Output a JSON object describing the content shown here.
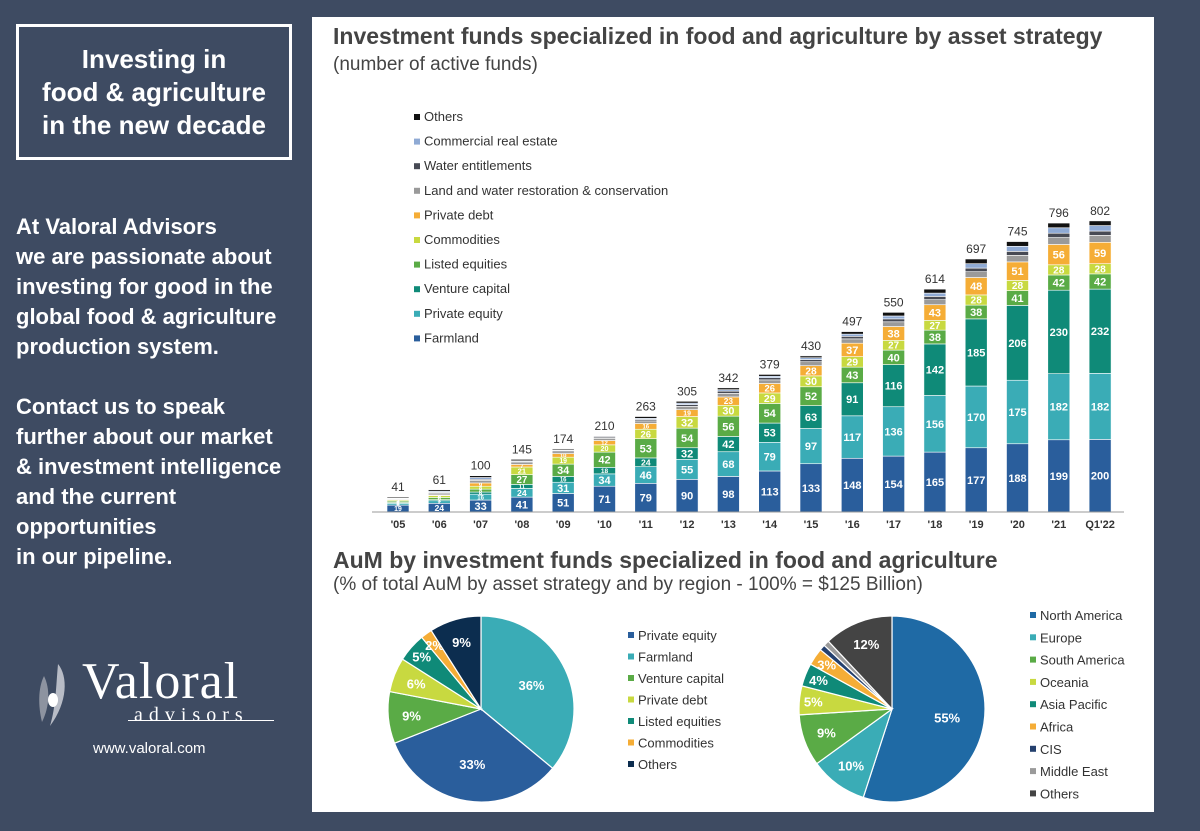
{
  "sidebar": {
    "title": "Investing in\nfood & agriculture\nin the new decade",
    "pitch": "At Valoral Advisors\nwe are passionate about\ninvesting for good in the\nglobal food & agriculture\nproduction system.\n\nContact us to speak\nfurther about our market\n& investment intelligence\nand  the current\nopportunities\nin our pipeline.",
    "logo_word": "Valoral",
    "logo_sub": "advisors",
    "website": "www.valoral.com"
  },
  "colors": {
    "Farmland": "#2a5e9c",
    "Private equity": "#3aacb6",
    "Venture capital": "#0f8a78",
    "Listed equities": "#5aab46",
    "Commodities": "#c8d940",
    "Private debt": "#f5ad36",
    "Land and water restoration & conservation": "#9a9a9a",
    "Water entitlements": "#474a54",
    "Commercial real estate": "#8faad4",
    "Others": "#111111",
    "North America": "#1f6aa5",
    "Europe": "#3aacb6",
    "South America": "#5aab46",
    "Oceania": "#c8d940",
    "Asia Pacific": "#0f8a78",
    "Africa": "#f5ad36",
    "CIS": "#24406e",
    "Middle East": "#9a9a9a",
    "OthersPie2": "#444444",
    "OthersPie1": "#0c2d4f"
  },
  "chart_data": [
    {
      "type": "bar",
      "stacked": true,
      "title": "Investment funds specialized in food and agriculture by asset strategy",
      "subtitle": "(number of active funds)",
      "categories": [
        "'05",
        "'06",
        "'07",
        "'08",
        "'09",
        "'10",
        "'11",
        "'12",
        "'13",
        "'14",
        "'15",
        "'16",
        "'17",
        "'18",
        "'19",
        "'20",
        "'21",
        "Q1'22"
      ],
      "totals": [
        41,
        61,
        100,
        145,
        174,
        210,
        263,
        305,
        342,
        379,
        430,
        497,
        550,
        614,
        697,
        745,
        796,
        802
      ],
      "legend_position": "top-left",
      "series": [
        {
          "name": "Farmland",
          "values": [
            19,
            24,
            33,
            41,
            51,
            71,
            79,
            90,
            98,
            113,
            133,
            148,
            154,
            165,
            177,
            188,
            199,
            200
          ]
        },
        {
          "name": "Private equity",
          "values": [
            5,
            7,
            16,
            24,
            31,
            34,
            46,
            55,
            68,
            79,
            97,
            117,
            136,
            156,
            170,
            175,
            182,
            182
          ]
        },
        {
          "name": "Venture capital",
          "values": [
            2,
            3,
            6,
            11,
            16,
            18,
            24,
            32,
            42,
            53,
            63,
            91,
            116,
            142,
            185,
            206,
            230,
            232
          ]
        },
        {
          "name": "Listed equities",
          "values": [
            4,
            6,
            8,
            27,
            34,
            42,
            53,
            54,
            56,
            54,
            52,
            43,
            40,
            38,
            38,
            41,
            42,
            42
          ]
        },
        {
          "name": "Commodities",
          "values": [
            3,
            5,
            8,
            21,
            19,
            20,
            26,
            32,
            30,
            29,
            30,
            29,
            27,
            27,
            28,
            28,
            28,
            28
          ]
        },
        {
          "name": "Private debt",
          "values": [
            1,
            2,
            9,
            7,
            10,
            12,
            16,
            19,
            23,
            26,
            28,
            37,
            38,
            43,
            48,
            51,
            56,
            59
          ]
        },
        {
          "name": "Land and water restoration & conservation",
          "values": [
            2,
            5,
            7,
            5,
            5,
            6,
            7,
            9,
            10,
            10,
            11,
            12,
            13,
            14,
            16,
            18,
            19,
            19
          ]
        },
        {
          "name": "Water entitlements",
          "values": [
            1,
            2,
            3,
            3,
            3,
            3,
            4,
            5,
            6,
            6,
            6,
            7,
            8,
            9,
            10,
            11,
            12,
            12
          ]
        },
        {
          "name": "Commercial real estate",
          "values": [
            1,
            3,
            5,
            2,
            2,
            2,
            3,
            4,
            4,
            4,
            5,
            6,
            8,
            9,
            12,
            14,
            15,
            15
          ]
        },
        {
          "name": "Others",
          "values": [
            3,
            4,
            5,
            4,
            3,
            2,
            5,
            5,
            5,
            5,
            5,
            7,
            10,
            11,
            13,
            13,
            13,
            13
          ]
        }
      ],
      "labels": [
        [
          19,
          24,
          33,
          41,
          51,
          71,
          79,
          90,
          98,
          113,
          133,
          148,
          154,
          165,
          177,
          188,
          199,
          200
        ],
        [
          5,
          7,
          16,
          24,
          31,
          34,
          46,
          55,
          68,
          79,
          97,
          117,
          136,
          156,
          170,
          175,
          182,
          182
        ],
        [
          2,
          3,
          6,
          11,
          16,
          18,
          24,
          32,
          42,
          53,
          63,
          91,
          116,
          142,
          185,
          206,
          230,
          232
        ],
        [
          4,
          6,
          8,
          27,
          34,
          42,
          53,
          54,
          56,
          54,
          52,
          43,
          40,
          38,
          38,
          41,
          42,
          42
        ],
        [
          3,
          5,
          8,
          21,
          19,
          20,
          26,
          32,
          30,
          29,
          30,
          29,
          27,
          27,
          28,
          28,
          28,
          28
        ],
        [
          1,
          2,
          9,
          7,
          10,
          12,
          16,
          19,
          23,
          26,
          28,
          37,
          38,
          43,
          48,
          51,
          56,
          59
        ]
      ]
    },
    {
      "type": "pie",
      "title": "AuM by investment funds specialized in food and agriculture",
      "subtitle": "(% of total AuM by asset strategy and by region - 100% = $125 Billion)",
      "slices": [
        {
          "name": "Private equity",
          "value": 36,
          "label": "36%",
          "color_key": "Private equity"
        },
        {
          "name": "Farmland",
          "value": 33,
          "label": "33%",
          "color_key": "Farmland"
        },
        {
          "name": "Venture capital",
          "value": 9,
          "label": "9%",
          "color_key": "Listed equities"
        },
        {
          "name": "Private debt",
          "value": 6,
          "label": "6%",
          "color_key": "Commodities"
        },
        {
          "name": "Listed equities",
          "value": 5,
          "label": "5%",
          "color_key": "Venture capital"
        },
        {
          "name": "Commodities",
          "value": 2,
          "label": "2%",
          "color_key": "Private debt"
        },
        {
          "name": "Others",
          "value": 9,
          "label": "9%",
          "color_key": "OthersPie1"
        }
      ],
      "legend": [
        {
          "name": "Private equity",
          "color_key": "Farmland"
        },
        {
          "name": "Farmland",
          "color_key": "Private equity"
        },
        {
          "name": "Venture capital",
          "color_key": "Listed equities"
        },
        {
          "name": "Private debt",
          "color_key": "Commodities"
        },
        {
          "name": "Listed equities",
          "color_key": "Venture capital"
        },
        {
          "name": "Commodities",
          "color_key": "Private debt"
        },
        {
          "name": "Others",
          "color_key": "OthersPie1"
        }
      ],
      "legend_position": "right"
    },
    {
      "type": "pie",
      "slices": [
        {
          "name": "North America",
          "value": 55,
          "label": "55%",
          "color_key": "North America"
        },
        {
          "name": "Europe",
          "value": 10,
          "label": "10%",
          "color_key": "Europe"
        },
        {
          "name": "South America",
          "value": 9,
          "label": "9%",
          "color_key": "South America"
        },
        {
          "name": "Oceania",
          "value": 5,
          "label": "5%",
          "color_key": "Oceania"
        },
        {
          "name": "Asia Pacific",
          "value": 4,
          "label": "4%",
          "color_key": "Asia Pacific"
        },
        {
          "name": "Africa",
          "value": 3,
          "label": "3%",
          "color_key": "Africa"
        },
        {
          "name": "CIS",
          "value": 1,
          "label": "",
          "color_key": "CIS"
        },
        {
          "name": "Middle East",
          "value": 1,
          "label": "",
          "color_key": "Middle East"
        },
        {
          "name": "Others",
          "value": 12,
          "label": "12%",
          "color_key": "OthersPie2"
        }
      ],
      "legend": [
        {
          "name": "North America",
          "color_key": "North America"
        },
        {
          "name": "Europe",
          "color_key": "Europe"
        },
        {
          "name": "South America",
          "color_key": "South America"
        },
        {
          "name": "Oceania",
          "color_key": "Oceania"
        },
        {
          "name": "Asia Pacific",
          "color_key": "Asia Pacific"
        },
        {
          "name": "Africa",
          "color_key": "Africa"
        },
        {
          "name": "CIS",
          "color_key": "CIS"
        },
        {
          "name": "Middle East",
          "color_key": "Middle East"
        },
        {
          "name": "Others",
          "color_key": "OthersPie2"
        }
      ],
      "legend_position": "right"
    }
  ]
}
